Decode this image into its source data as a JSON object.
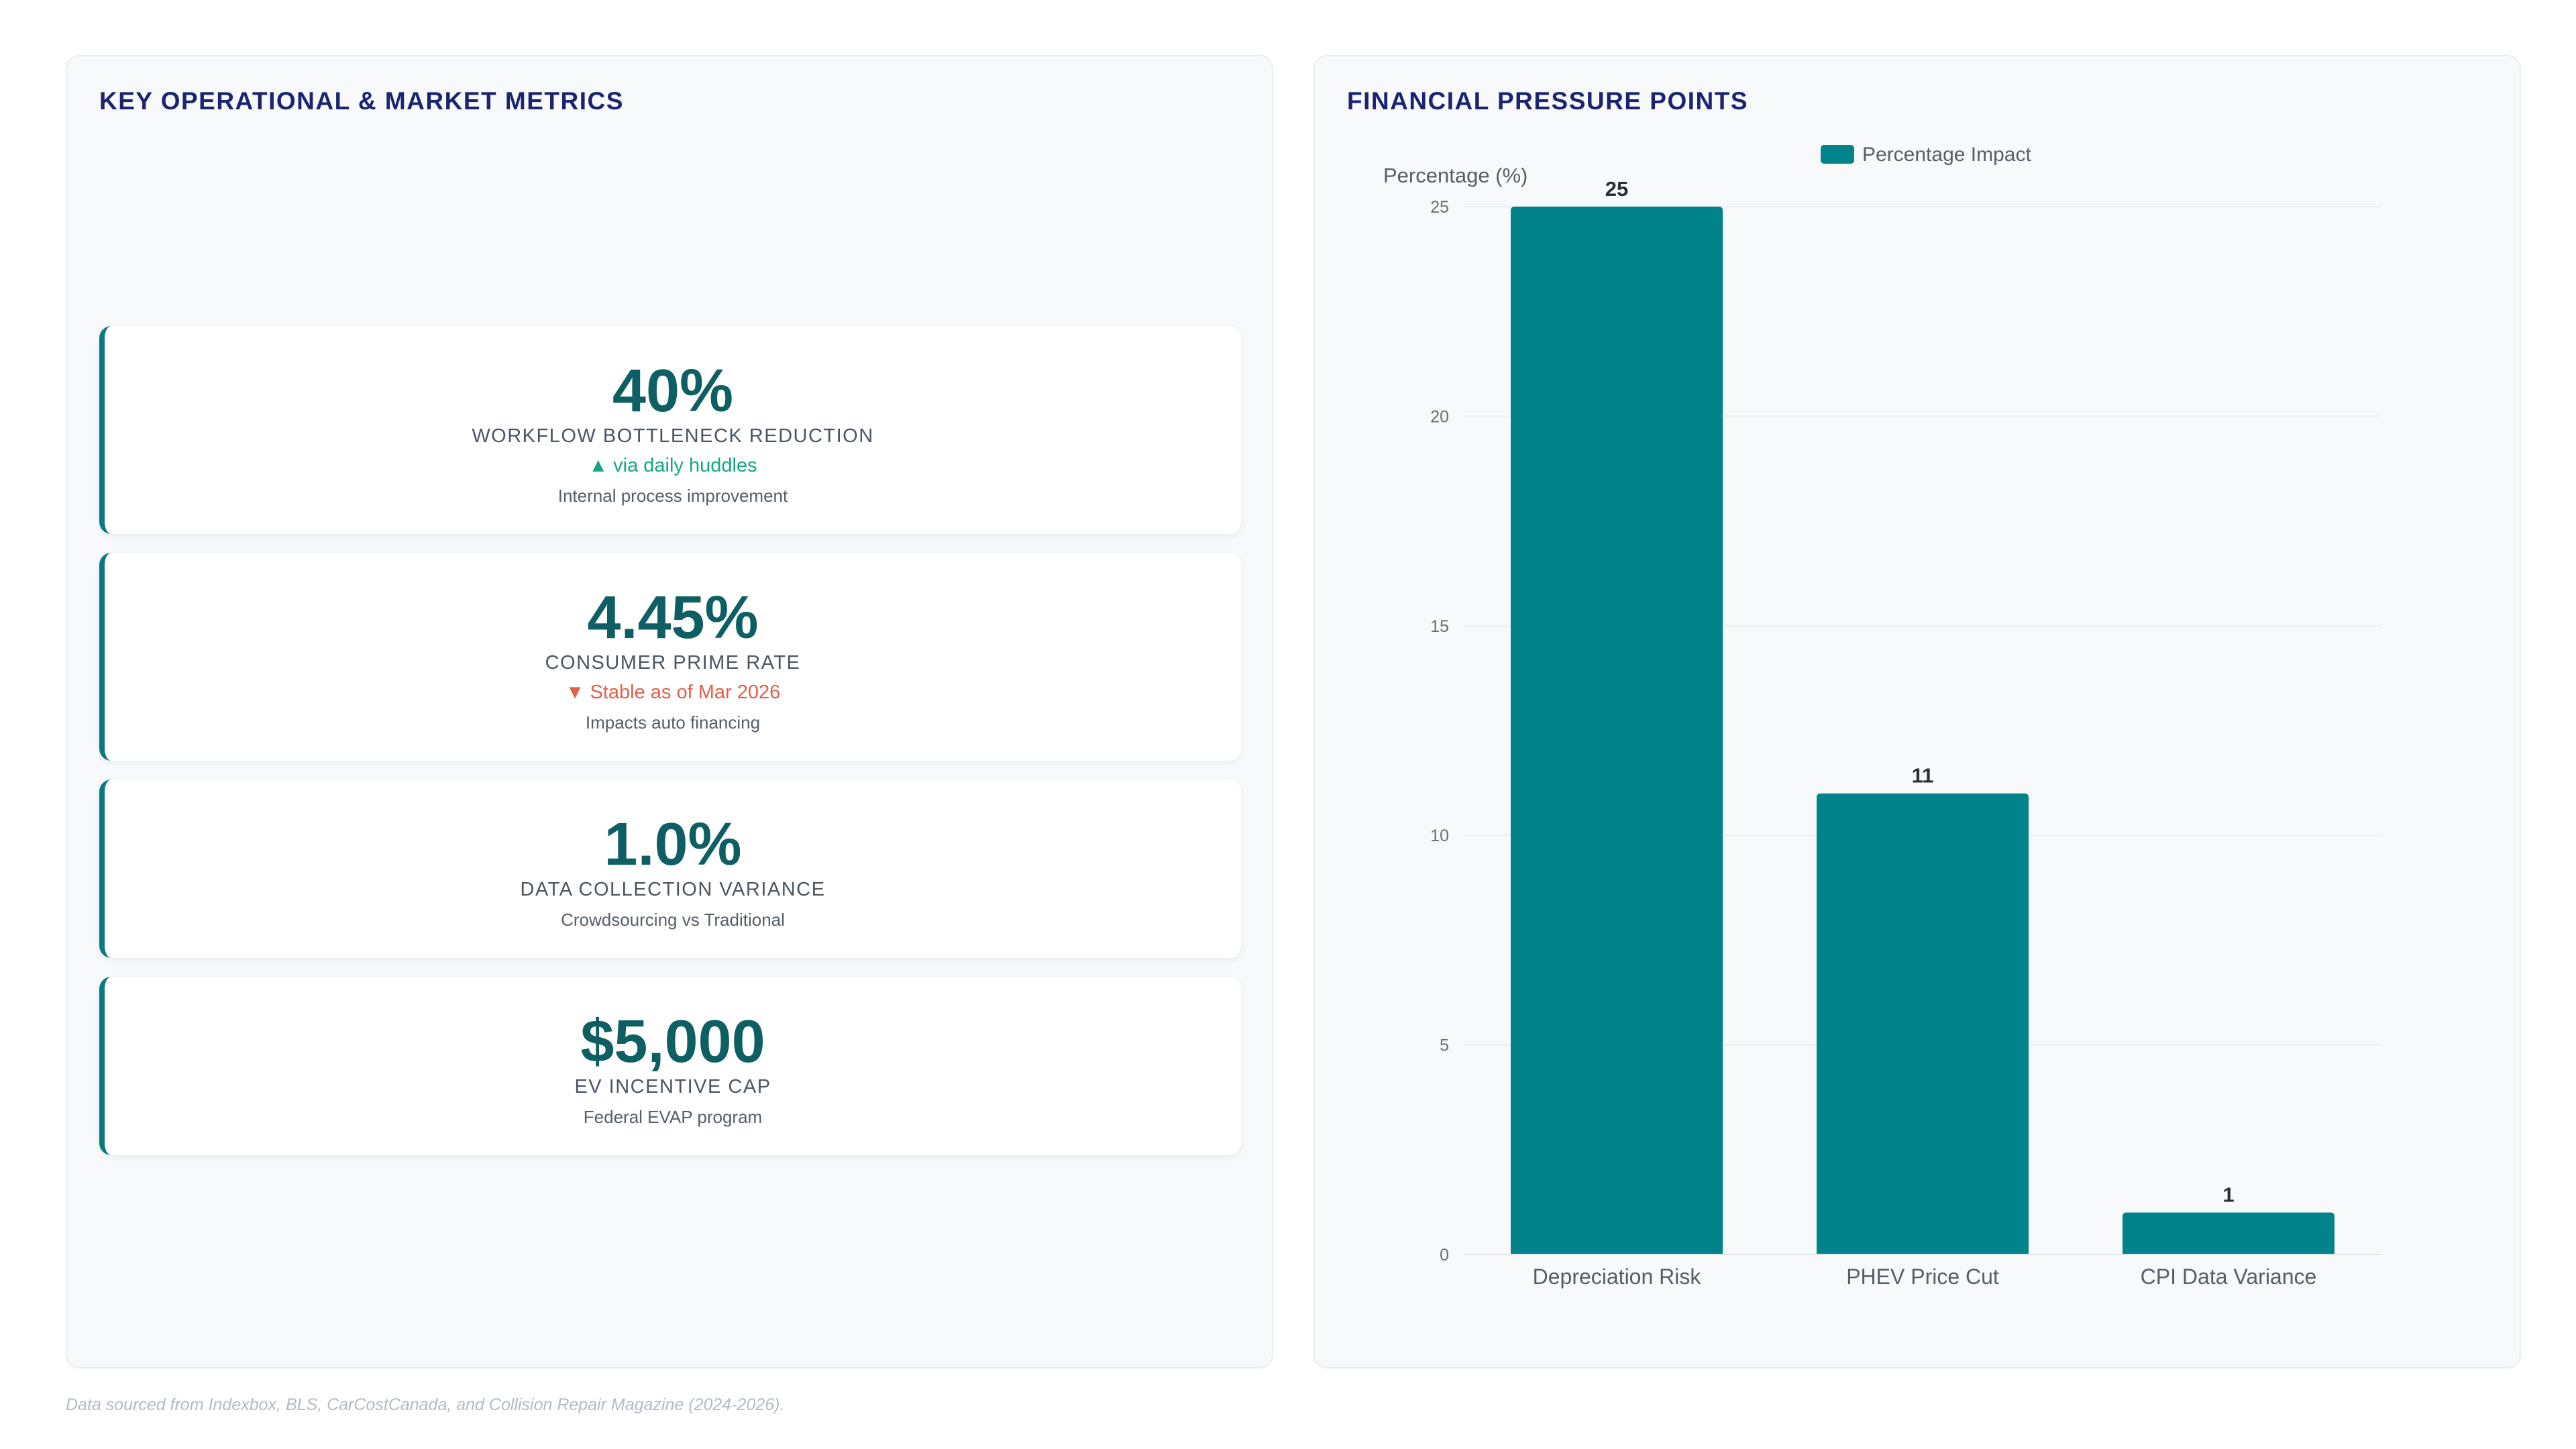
{
  "left_panel": {
    "title": "KEY OPERATIONAL & MARKET METRICS",
    "metrics": [
      {
        "value": "40%",
        "label": "WORKFLOW BOTTLENECK REDUCTION",
        "trend": "▲ via daily huddles",
        "trend_direction": "up",
        "note": "Internal process improvement"
      },
      {
        "value": "4.45%",
        "label": "CONSUMER PRIME RATE",
        "trend": "▼ Stable as of Mar 2026",
        "trend_direction": "down",
        "note": "Impacts auto financing"
      },
      {
        "value": "1.0%",
        "label": "DATA COLLECTION VARIANCE",
        "note": "Crowdsourcing vs Traditional"
      },
      {
        "value": "$5,000",
        "label": "EV INCENTIVE CAP",
        "note": "Federal EVAP program"
      }
    ]
  },
  "right_panel": {
    "title": "FINANCIAL PRESSURE POINTS"
  },
  "chart_data": {
    "type": "bar",
    "title": "",
    "categories": [
      "Depreciation Risk",
      "PHEV Price Cut",
      "CPI Data Variance"
    ],
    "series": [
      {
        "name": "Percentage Impact",
        "values": [
          25,
          11,
          1
        ],
        "color": "#00838a"
      }
    ],
    "xlabel": "",
    "ylabel": "Percentage (%)",
    "ylim": [
      0,
      25
    ],
    "yticks": [
      "0",
      "5",
      "10",
      "15",
      "20",
      "25"
    ],
    "data_labels": [
      "25",
      "11",
      "1"
    ],
    "grid": true,
    "legend": "top-center"
  },
  "footer": {
    "source_note": "Data sourced from Indexbox, BLS, CarCostCanada, and Collision Repair Magazine (2024-2026)."
  },
  "colors": {
    "title": "#1a2470",
    "metric_value": "#0e5f63",
    "accent": "#0b7a7e",
    "trend_up": "#13a884",
    "trend_down": "#e0604a",
    "bar": "#00838a"
  }
}
